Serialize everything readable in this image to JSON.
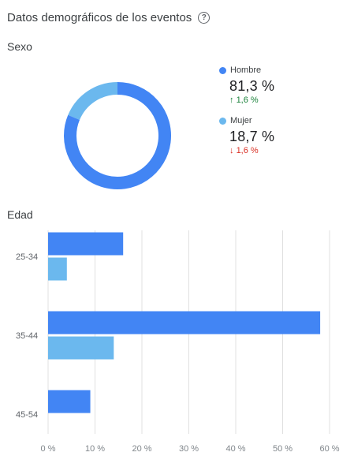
{
  "header": {
    "title": "Datos demográficos de los eventos",
    "help_icon": "help-circle-icon"
  },
  "sexo": {
    "label": "Sexo",
    "legend": [
      {
        "name": "Hombre",
        "value": "81,3 %",
        "change": "1,6 %",
        "direction": "up",
        "color": "#4285f4"
      },
      {
        "name": "Mujer",
        "value": "18,7 %",
        "change": "1,6 %",
        "direction": "down",
        "color": "#6bb8ee"
      }
    ]
  },
  "edad": {
    "label": "Edad"
  },
  "colors": {
    "series1": "#4285f4",
    "series2": "#6bb8ee",
    "up": "#188038",
    "down": "#d93025",
    "grid": "#e0e0e0"
  },
  "chart_data": [
    {
      "type": "pie",
      "labels": [
        "Hombre",
        "Mujer"
      ],
      "values": [
        81.3,
        18.7
      ]
    },
    {
      "type": "bar",
      "orientation": "horizontal",
      "categories": [
        "25-34",
        "35-44",
        "45-54"
      ],
      "series": [
        {
          "values": [
            16,
            58,
            9
          ]
        },
        {
          "values": [
            4,
            14,
            0
          ]
        }
      ],
      "xlim": [
        0,
        60
      ],
      "x_ticks": [
        "0 %",
        "10 %",
        "20 %",
        "30 %",
        "40 %",
        "50 %",
        "60 %"
      ],
      "grid": true
    }
  ]
}
